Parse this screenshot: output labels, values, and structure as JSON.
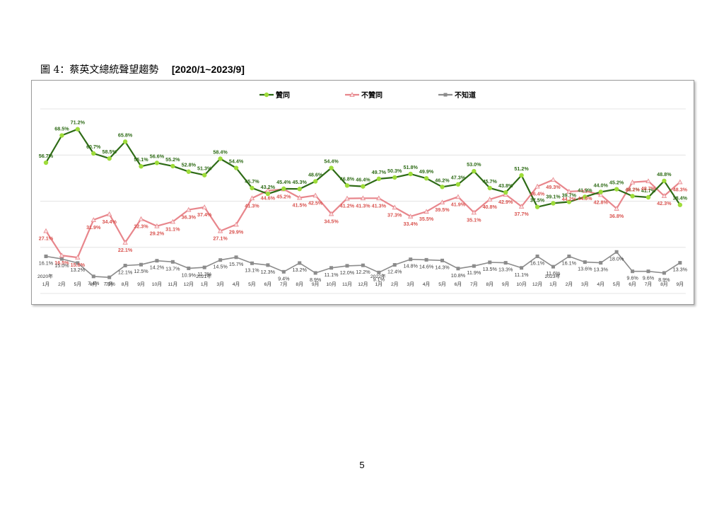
{
  "figure": {
    "caption": "圖 4：蔡英文總統聲望趨勢",
    "range": "[2020/1~2023/9]"
  },
  "page_number": "5",
  "colors": {
    "approve": "#2e6b16",
    "approve_marker": "#9edc3a",
    "disapprove": "#e8868c",
    "disapprove_label": "#d9534f",
    "unknown": "#8c8c8c"
  },
  "chart_data": {
    "type": "line",
    "year_labels": [
      {
        "label": "2020年",
        "index": 0
      },
      {
        "label": "2021年",
        "index": 10
      },
      {
        "label": "2022年",
        "index": 21
      },
      {
        "label": "2023年",
        "index": 32
      }
    ],
    "categories": [
      "1月",
      "2月",
      "5月",
      "6月",
      "7月",
      "8月",
      "9月",
      "10月",
      "11月",
      "12月",
      "1月",
      "3月",
      "4月",
      "5月",
      "6月",
      "7月",
      "8月",
      "9月",
      "10月",
      "11月",
      "12月",
      "1月",
      "2月",
      "3月",
      "4月",
      "5月",
      "6月",
      "7月",
      "8月",
      "9月",
      "10月",
      "12月",
      "1月",
      "2月",
      "3月",
      "4月",
      "5月",
      "6月",
      "7月",
      "8月",
      "9月"
    ],
    "ylim": [
      0,
      80
    ],
    "grid": true,
    "legend_position": "top",
    "series": [
      {
        "name": "贊同",
        "values": [
          56.7,
          68.5,
          71.2,
          60.7,
          58.5,
          65.8,
          55.1,
          56.6,
          55.2,
          52.8,
          51.3,
          58.4,
          54.4,
          45.7,
          43.2,
          45.4,
          45.3,
          48.6,
          54.4,
          46.8,
          46.4,
          49.7,
          50.3,
          51.8,
          49.9,
          46.2,
          47.3,
          53.0,
          45.7,
          43.8,
          51.2,
          37.5,
          39.1,
          39.7,
          41.9,
          44.0,
          45.2,
          42.2,
          41.7,
          48.8,
          38.4
        ]
      },
      {
        "name": "不贊同",
        "values": [
          27.1,
          16.5,
          15.6,
          31.9,
          34.4,
          22.1,
          32.3,
          29.2,
          31.1,
          36.3,
          37.4,
          27.1,
          29.9,
          41.3,
          44.6,
          45.2,
          41.5,
          42.5,
          34.5,
          41.2,
          41.3,
          41.3,
          37.3,
          33.4,
          35.5,
          39.5,
          41.9,
          35.1,
          40.8,
          42.9,
          37.7,
          46.4,
          49.3,
          44.2,
          44.5,
          42.8,
          36.8,
          48.2,
          48.7,
          42.3,
          48.3
        ]
      },
      {
        "name": "不知道",
        "values": [
          16.1,
          15.0,
          13.2,
          7.4,
          7.0,
          12.1,
          12.5,
          14.2,
          13.7,
          10.9,
          11.3,
          14.5,
          15.7,
          13.1,
          12.3,
          9.4,
          13.2,
          8.9,
          11.1,
          12.0,
          12.2,
          9.1,
          12.4,
          14.8,
          14.6,
          14.3,
          10.8,
          11.9,
          13.5,
          13.3,
          11.1,
          16.1,
          11.6,
          16.1,
          13.6,
          13.3,
          18.0,
          9.6,
          9.6,
          8.9,
          13.3
        ]
      }
    ],
    "data_labels": [
      [
        "56.7%",
        "68.5%",
        "71.2%",
        "60.7%",
        "58.5%",
        "65.8%",
        "55.1%",
        "56.6%",
        "55.2%",
        "52.8%",
        "51.3%",
        "58.4%",
        "54.4%",
        "45.7%",
        "43.2%",
        "45.4%",
        "45.3%",
        "48.6%",
        "54.4%",
        "46.8%",
        "46.4%",
        "49.7%",
        "50.3%",
        "51.8%",
        "49.9%",
        "46.2%",
        "47.3%",
        "53.0%",
        "45.7%",
        "43.8%",
        "51.2%",
        "37.5%",
        "39.1%",
        "39.7%",
        "41.9%",
        "44.0%",
        "45.2%",
        "42.2%",
        "41.7%",
        "48.8%",
        "38.4%"
      ],
      [
        "27.1%",
        "16.5%",
        "15.6%",
        "31.9%",
        "34.4%",
        "22.1%",
        "32.3%",
        "29.2%",
        "31.1%",
        "36.3%",
        "37.4%",
        "27.1%",
        "29.9%",
        "41.3%",
        "44.6%",
        "45.2%",
        "41.5%",
        "42.5%",
        "34.5%",
        "41.2%",
        "41.3%",
        "41.3%",
        "37.3%",
        "33.4%",
        "35.5%",
        "39.5%",
        "41.9%",
        "35.1%",
        "40.8%",
        "42.9%",
        "37.7%",
        "46.4%",
        "49.3%",
        "44.2%",
        "44.5%",
        "42.8%",
        "36.8%",
        "48.2%",
        "48.7%",
        "42.3%",
        "48.3%"
      ],
      [
        "16.1%",
        "15.0%",
        "13.2%",
        "7.4%",
        "7.0%",
        "12.1%",
        "12.5%",
        "14.2%",
        "13.7%",
        "10.9%",
        "11.3%",
        "14.5%",
        "15.7%",
        "13.1%",
        "12.3%",
        "9.4%",
        "13.2%",
        "8.9%",
        "11.1%",
        "12.0%",
        "12.2%",
        "9.1%",
        "12.4%",
        "14.8%",
        "14.6%",
        "14.3%",
        "10.8%",
        "11.9%",
        "13.5%",
        "13.3%",
        "11.1%",
        "16.1%",
        "11.6%",
        "16.1%",
        "13.6%",
        "13.3%",
        "18.0%",
        "9.6%",
        "9.6%",
        "8.9%",
        "13.3%"
      ]
    ]
  }
}
